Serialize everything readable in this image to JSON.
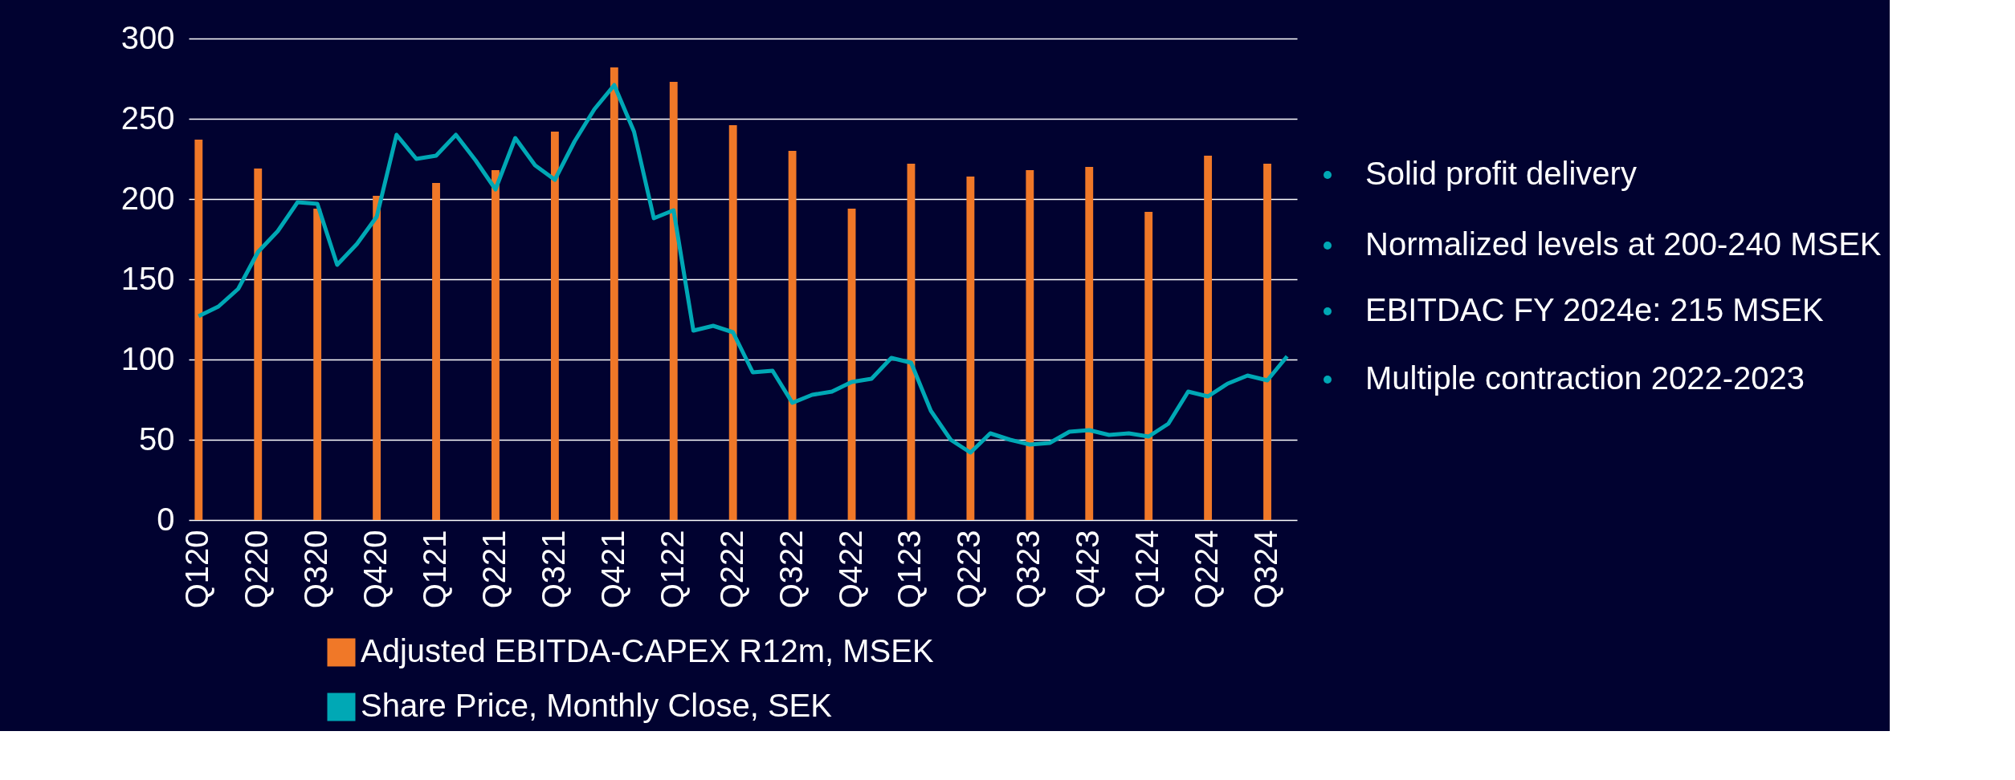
{
  "chart_data": {
    "type": "bar",
    "categories": [
      "Q120",
      null,
      null,
      "Q220",
      null,
      null,
      "Q320",
      null,
      null,
      "Q420",
      null,
      null,
      "Q121",
      null,
      null,
      "Q221",
      null,
      null,
      "Q321",
      null,
      null,
      "Q421",
      null,
      null,
      "Q122",
      null,
      null,
      "Q222",
      null,
      null,
      "Q322",
      null,
      null,
      "Q422",
      null,
      null,
      "Q123",
      null,
      null,
      "Q223",
      null,
      null,
      "Q323",
      null,
      null,
      "Q423",
      null,
      null,
      "Q124",
      null,
      null,
      "Q224",
      null,
      null,
      "Q324",
      null
    ],
    "series": [
      {
        "name": "Adjusted EBITDA-CAPEX R12m, MSEK",
        "color": "#f07828",
        "values": [
          237,
          null,
          null,
          219,
          null,
          null,
          194,
          null,
          null,
          202,
          null,
          null,
          210,
          null,
          null,
          218,
          null,
          null,
          242,
          null,
          null,
          282,
          null,
          null,
          273,
          null,
          null,
          246,
          null,
          null,
          230,
          null,
          null,
          194,
          null,
          null,
          222,
          null,
          null,
          214,
          null,
          null,
          218,
          null,
          null,
          220,
          null,
          null,
          192,
          null,
          null,
          227,
          null,
          null,
          222,
          null
        ]
      },
      {
        "name": "Share Price, Monthly Close, SEK",
        "type": "line",
        "color": "#00a8b5",
        "values": [
          127,
          133,
          144,
          167,
          180,
          198,
          197,
          159,
          172,
          189,
          240,
          225,
          227,
          240,
          224,
          206,
          238,
          221,
          212,
          236,
          256,
          271,
          242,
          188,
          193,
          118,
          121,
          117,
          92,
          93,
          73,
          78,
          80,
          86,
          88,
          101,
          98,
          68,
          50,
          42,
          54,
          50,
          47,
          48,
          55,
          56,
          53,
          54,
          52,
          60,
          80,
          77,
          85,
          90,
          87,
          102
        ]
      }
    ],
    "ylim": [
      0,
      300
    ],
    "yticks": [
      0,
      50,
      100,
      150,
      200,
      250,
      300
    ],
    "grid": "y",
    "legend": "bottom",
    "annotations": [
      "Solid profit delivery",
      "Normalized levels at 200-240 MSEK",
      "EBITDAC FY 2024e: 215 MSEK",
      "Multiple contraction 2022-2023"
    ]
  }
}
